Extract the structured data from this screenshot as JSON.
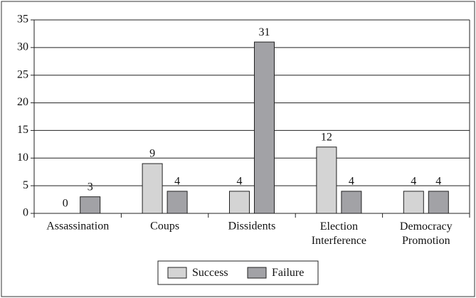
{
  "chart_data": {
    "type": "bar",
    "categories": [
      "Assassination",
      "Coups",
      "Dissidents",
      "Election Interference",
      "Democracy Promotion"
    ],
    "series": [
      {
        "name": "Success",
        "color": "#d4d4d4",
        "values": [
          0,
          9,
          4,
          12,
          4
        ]
      },
      {
        "name": "Failure",
        "color": "#a2a2a6",
        "values": [
          3,
          4,
          31,
          4,
          4
        ]
      }
    ],
    "ylim": [
      0,
      35
    ],
    "yticks": [
      0,
      5,
      10,
      15,
      20,
      25,
      30,
      35
    ],
    "grid": true,
    "legend": "bottom"
  }
}
